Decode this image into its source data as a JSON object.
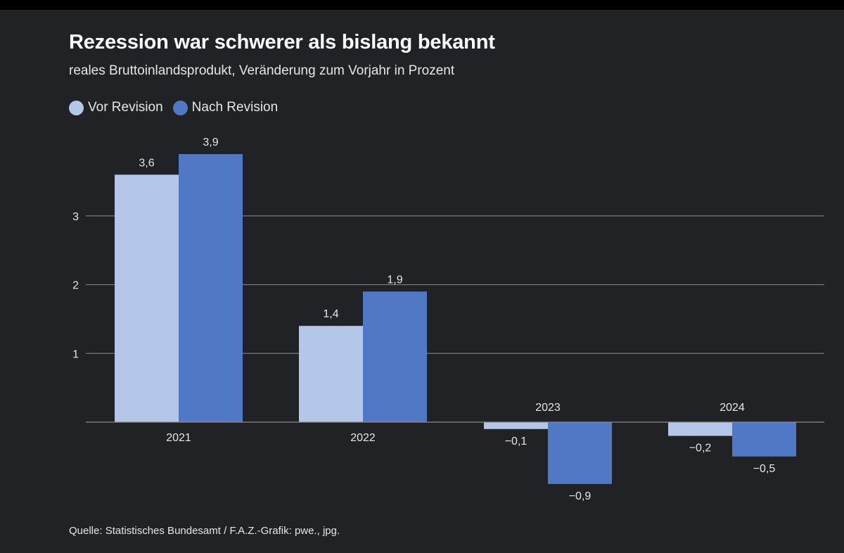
{
  "colors": {
    "background": "#212226",
    "vor_revision": "#b4c7e9",
    "nach_revision": "#5078c4",
    "grid": "#8a8c91",
    "text": "#e6e6e6"
  },
  "chart_data": {
    "type": "bar",
    "title": "Rezession war schwerer als bislang bekannt",
    "subtitle": "reales Bruttoinlandsprodukt, Veränderung zum Vorjahr in Prozent",
    "categories": [
      "2021",
      "2022",
      "2023",
      "2024"
    ],
    "series": [
      {
        "name": "Vor Revision",
        "values": [
          3.6,
          1.4,
          -0.1,
          -0.2
        ],
        "labels": [
          "3,6",
          "1,4",
          "−0,1",
          "−0,2"
        ]
      },
      {
        "name": "Nach Revision",
        "values": [
          3.9,
          1.9,
          -0.9,
          -0.5
        ],
        "labels": [
          "3,9",
          "1,9",
          "−0,9",
          "−0,5"
        ]
      }
    ],
    "yticks": [
      1,
      2,
      3
    ],
    "ytick_labels": [
      "1",
      "2",
      "3"
    ],
    "ylim": [
      -1.0,
      4.0
    ],
    "grid": true,
    "legend_position": "top-left",
    "xlabel": "",
    "ylabel": ""
  },
  "source": "Quelle: Statistisches Bundesamt / F.A.Z.-Grafik: pwe., jpg."
}
